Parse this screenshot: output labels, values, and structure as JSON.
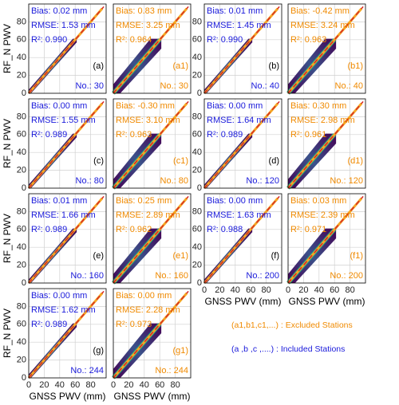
{
  "chart_data": [
    {
      "type": "scatter",
      "bias": "Bias: 0.02 mm",
      "rmse": "RMSE: 1.53 mm",
      "r2": "R²: 0.990",
      "count": "No.: 30",
      "label": "(a)",
      "text_color": "#1a1adb",
      "ylabel": "RF_N PWV",
      "xlim": [
        0,
        100
      ],
      "ylim": [
        0,
        100
      ],
      "xticks": [
        0,
        20,
        40,
        60,
        80
      ],
      "yticks": [
        0,
        20,
        40,
        60,
        80
      ],
      "grid": true
    },
    {
      "type": "scatter",
      "bias": "Bias: 0.83 mm",
      "rmse": "RMSE: 3.25 mm",
      "r2": "R²: 0.964",
      "count": "No.: 30",
      "label": "(a1)",
      "text_color": "#f08a00",
      "xlim": [
        0,
        100
      ],
      "ylim": [
        0,
        100
      ],
      "xticks": [
        0,
        20,
        40,
        60,
        80
      ],
      "yticks": [
        0,
        20,
        40,
        60,
        80
      ],
      "grid": true
    },
    {
      "type": "scatter",
      "bias": "Bias: 0.01 mm",
      "rmse": "RMSE: 1.45 mm",
      "r2": "R²: 0.990",
      "count": "No.: 40",
      "label": "(b)",
      "text_color": "#1a1adb",
      "xlim": [
        0,
        100
      ],
      "ylim": [
        0,
        100
      ],
      "xticks": [
        0,
        20,
        40,
        60,
        80
      ],
      "yticks": [
        0,
        20,
        40,
        60,
        80
      ],
      "grid": true
    },
    {
      "type": "scatter",
      "bias": "Bias: -0.42 mm",
      "rmse": "RMSE: 3.24 mm",
      "r2": "R²: 0.963",
      "count": "No.: 40",
      "label": "(b1)",
      "text_color": "#f08a00",
      "xlim": [
        0,
        100
      ],
      "ylim": [
        0,
        100
      ],
      "xticks": [
        0,
        20,
        40,
        60,
        80
      ],
      "yticks": [
        0,
        20,
        40,
        60,
        80
      ],
      "grid": true
    },
    {
      "type": "scatter",
      "bias": "Bias: 0.00 mm",
      "rmse": "RMSE: 1.55 mm",
      "r2": "R²: 0.989",
      "count": "No.: 80",
      "label": "(c)",
      "text_color": "#1a1adb",
      "ylabel": "RF_N PWV",
      "xlim": [
        0,
        100
      ],
      "ylim": [
        0,
        100
      ],
      "xticks": [
        0,
        20,
        40,
        60,
        80
      ],
      "yticks": [
        0,
        20,
        40,
        60,
        80
      ],
      "grid": true
    },
    {
      "type": "scatter",
      "bias": "Bias: -0.30 mm",
      "rmse": "RMSE: 3.10 mm",
      "r2": "R²: 0.963",
      "count": "No.: 80",
      "label": "(c1)",
      "text_color": "#f08a00",
      "xlim": [
        0,
        100
      ],
      "ylim": [
        0,
        100
      ],
      "xticks": [
        0,
        20,
        40,
        60,
        80
      ],
      "yticks": [
        0,
        20,
        40,
        60,
        80
      ],
      "grid": true
    },
    {
      "type": "scatter",
      "bias": "Bias: 0.00 mm",
      "rmse": "RMSE: 1.64 mm",
      "r2": "R²: 0.989",
      "count": "No.: 120",
      "label": "(d)",
      "text_color": "#1a1adb",
      "xlim": [
        0,
        100
      ],
      "ylim": [
        0,
        100
      ],
      "xticks": [
        0,
        20,
        40,
        60,
        80
      ],
      "yticks": [
        0,
        20,
        40,
        60,
        80
      ],
      "grid": true
    },
    {
      "type": "scatter",
      "bias": "Bias: 0.30 mm",
      "rmse": "RMSE: 2.98 mm",
      "r2": "R²: 0.961",
      "count": "No.: 120",
      "label": "(d1)",
      "text_color": "#f08a00",
      "xlim": [
        0,
        100
      ],
      "ylim": [
        0,
        100
      ],
      "xticks": [
        0,
        20,
        40,
        60,
        80
      ],
      "yticks": [
        0,
        20,
        40,
        60,
        80
      ],
      "grid": true
    },
    {
      "type": "scatter",
      "bias": "Bias: 0.01 mm",
      "rmse": "RMSE: 1.66 mm",
      "r2": "R²: 0.989",
      "count": "No.: 160",
      "label": "(e)",
      "text_color": "#1a1adb",
      "ylabel": "RF_N PWV",
      "xlim": [
        0,
        100
      ],
      "ylim": [
        0,
        100
      ],
      "xticks": [
        0,
        20,
        40,
        60,
        80
      ],
      "yticks": [
        0,
        20,
        40,
        60,
        80
      ],
      "grid": true
    },
    {
      "type": "scatter",
      "bias": "Bias: 0.25 mm",
      "rmse": "RMSE: 2.89 mm",
      "r2": "R²: 0.962",
      "count": "No.: 160",
      "label": "(e1)",
      "text_color": "#f08a00",
      "xlim": [
        0,
        100
      ],
      "ylim": [
        0,
        100
      ],
      "xticks": [
        0,
        20,
        40,
        60,
        80
      ],
      "yticks": [
        0,
        20,
        40,
        60,
        80
      ],
      "grid": true
    },
    {
      "type": "scatter",
      "bias": "Bias: 0.00 mm",
      "rmse": "RMSE: 1.63 mm",
      "r2": "R²: 0.988",
      "count": "No.: 200",
      "label": "(f)",
      "text_color": "#1a1adb",
      "xlabel": "GNSS PWV (mm)",
      "xlim": [
        0,
        100
      ],
      "ylim": [
        0,
        100
      ],
      "xticks": [
        0,
        20,
        40,
        60,
        80
      ],
      "yticks": [
        0,
        20,
        40,
        60,
        80
      ],
      "grid": true
    },
    {
      "type": "scatter",
      "bias": "Bias: 0.03 mm",
      "rmse": "RMSE: 2.39 mm",
      "r2": "R²: 0.971",
      "count": "No.: 200",
      "label": "(f1)",
      "text_color": "#f08a00",
      "xlabel": "GNSS PWV (mm)",
      "xlim": [
        0,
        100
      ],
      "ylim": [
        0,
        100
      ],
      "xticks": [
        0,
        20,
        40,
        60,
        80
      ],
      "yticks": [
        0,
        20,
        40,
        60,
        80
      ],
      "grid": true
    },
    {
      "type": "scatter",
      "bias": "Bias: 0.00 mm",
      "rmse": "RMSE: 1.62 mm",
      "r2": "R²: 0.989",
      "count": "No.: 244",
      "label": "(g)",
      "text_color": "#1a1adb",
      "xlabel": "GNSS PWV (mm)",
      "ylabel": "RF_N PWV",
      "xlim": [
        0,
        100
      ],
      "ylim": [
        0,
        100
      ],
      "xticks": [
        0,
        20,
        40,
        60,
        80
      ],
      "yticks": [
        0,
        20,
        40,
        60,
        80
      ],
      "grid": true
    },
    {
      "type": "scatter",
      "bias": "Bias: 0.00 mm",
      "rmse": "RMSE: 2.28 mm",
      "r2": "R²: 0.973",
      "count": "No.: 244",
      "label": "(g1)",
      "text_color": "#f08a00",
      "xlabel": "GNSS PWV (mm)",
      "xlim": [
        0,
        100
      ],
      "ylim": [
        0,
        100
      ],
      "xticks": [
        0,
        20,
        40,
        60,
        80
      ],
      "yticks": [
        0,
        20,
        40,
        60,
        80
      ],
      "grid": true
    }
  ],
  "notes": [
    {
      "text": "(a1,b1,c1,...)  : Excluded Stations",
      "color": "#f08a00"
    },
    {
      "text": "(a ,b ,c ,....)  : Included Stations",
      "color": "#1a1adb"
    }
  ]
}
